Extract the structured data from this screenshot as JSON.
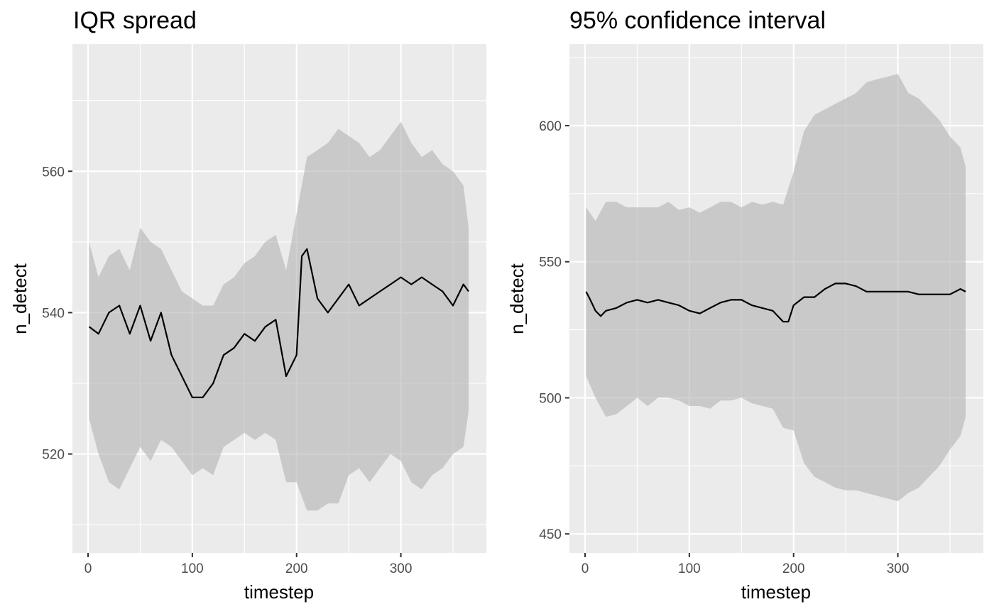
{
  "chart_data": [
    {
      "type": "area",
      "title": "IQR spread",
      "xlabel": "timestep",
      "ylabel": "n_detect",
      "xlim": [
        -15,
        382
      ],
      "ylim": [
        506,
        578
      ],
      "x_ticks": [
        0,
        100,
        200,
        300
      ],
      "y_ticks": [
        520,
        540,
        560
      ],
      "grid": true,
      "series": [
        {
          "role": "median",
          "x": [
            1,
            10,
            20,
            30,
            40,
            50,
            60,
            70,
            80,
            90,
            100,
            110,
            120,
            130,
            140,
            150,
            160,
            170,
            180,
            190,
            200,
            205,
            210,
            220,
            230,
            240,
            250,
            260,
            270,
            280,
            290,
            300,
            310,
            320,
            330,
            340,
            350,
            360,
            365
          ],
          "y": [
            538,
            537,
            540,
            541,
            537,
            541,
            536,
            540,
            534,
            531,
            528,
            528,
            530,
            534,
            535,
            537,
            536,
            538,
            539,
            531,
            534,
            548,
            549,
            542,
            540,
            542,
            544,
            541,
            542,
            543,
            544,
            545,
            544,
            545,
            544,
            543,
            541,
            544,
            543
          ]
        },
        {
          "role": "upper",
          "x": [
            1,
            10,
            20,
            30,
            40,
            50,
            60,
            70,
            80,
            90,
            100,
            110,
            120,
            130,
            140,
            150,
            160,
            170,
            180,
            190,
            200,
            210,
            220,
            230,
            240,
            250,
            260,
            270,
            280,
            290,
            300,
            310,
            320,
            330,
            340,
            350,
            360,
            365
          ],
          "y": [
            550,
            545,
            548,
            549,
            546,
            552,
            550,
            549,
            546,
            543,
            542,
            541,
            541,
            544,
            545,
            547,
            548,
            550,
            551,
            546,
            554,
            562,
            563,
            564,
            566,
            565,
            564,
            562,
            563,
            565,
            567,
            564,
            562,
            563,
            561,
            560,
            558,
            552
          ]
        },
        {
          "role": "lower",
          "x": [
            1,
            10,
            20,
            30,
            40,
            50,
            60,
            70,
            80,
            90,
            100,
            110,
            120,
            130,
            140,
            150,
            160,
            170,
            180,
            190,
            200,
            210,
            220,
            230,
            240,
            250,
            260,
            270,
            280,
            290,
            300,
            310,
            320,
            330,
            340,
            350,
            360,
            365
          ],
          "y": [
            525,
            520,
            516,
            515,
            518,
            521,
            519,
            522,
            521,
            519,
            517,
            518,
            517,
            521,
            522,
            523,
            522,
            523,
            522,
            516,
            516,
            512,
            512,
            513,
            513,
            517,
            518,
            516,
            518,
            520,
            519,
            516,
            515,
            517,
            518,
            520,
            521,
            526
          ]
        }
      ]
    },
    {
      "type": "area",
      "title": "95% confidence interval",
      "xlabel": "timestep",
      "ylabel": "n_detect",
      "xlim": [
        -15,
        382
      ],
      "ylim": [
        443,
        630
      ],
      "x_ticks": [
        0,
        100,
        200,
        300
      ],
      "y_ticks": [
        450,
        500,
        550,
        600
      ],
      "grid": true,
      "series": [
        {
          "role": "mean",
          "x": [
            1,
            5,
            10,
            15,
            20,
            30,
            40,
            50,
            60,
            70,
            80,
            90,
            100,
            110,
            120,
            130,
            140,
            150,
            160,
            170,
            180,
            190,
            195,
            200,
            210,
            220,
            230,
            240,
            250,
            260,
            270,
            280,
            290,
            300,
            310,
            320,
            330,
            340,
            350,
            360,
            365
          ],
          "y": [
            539,
            536,
            532,
            530,
            532,
            533,
            535,
            536,
            535,
            536,
            535,
            534,
            532,
            531,
            533,
            535,
            536,
            536,
            534,
            533,
            532,
            528,
            528,
            534,
            537,
            537,
            540,
            542,
            542,
            541,
            539,
            539,
            539,
            539,
            539,
            538,
            538,
            538,
            538,
            540,
            539
          ]
        },
        {
          "role": "upper",
          "x": [
            1,
            10,
            20,
            30,
            40,
            50,
            60,
            70,
            80,
            90,
            100,
            110,
            120,
            130,
            140,
            150,
            160,
            170,
            180,
            190,
            200,
            210,
            220,
            230,
            240,
            250,
            260,
            270,
            280,
            290,
            300,
            310,
            320,
            330,
            340,
            350,
            360,
            365
          ],
          "y": [
            570,
            565,
            572,
            572,
            570,
            570,
            570,
            570,
            572,
            569,
            570,
            568,
            570,
            572,
            572,
            570,
            572,
            571,
            572,
            571,
            583,
            598,
            604,
            606,
            608,
            610,
            612,
            616,
            617,
            618,
            619,
            612,
            610,
            606,
            602,
            596,
            592,
            585
          ]
        },
        {
          "role": "lower",
          "x": [
            1,
            10,
            20,
            30,
            40,
            50,
            60,
            70,
            80,
            90,
            100,
            110,
            120,
            130,
            140,
            150,
            160,
            170,
            180,
            190,
            200,
            210,
            220,
            230,
            240,
            250,
            260,
            270,
            280,
            290,
            300,
            310,
            320,
            330,
            340,
            350,
            360,
            365
          ],
          "y": [
            508,
            500,
            493,
            494,
            497,
            500,
            497,
            500,
            500,
            499,
            497,
            497,
            496,
            499,
            499,
            500,
            498,
            497,
            496,
            489,
            488,
            476,
            471,
            469,
            467,
            466,
            466,
            465,
            464,
            463,
            462,
            465,
            467,
            471,
            475,
            481,
            486,
            493
          ]
        }
      ]
    }
  ]
}
